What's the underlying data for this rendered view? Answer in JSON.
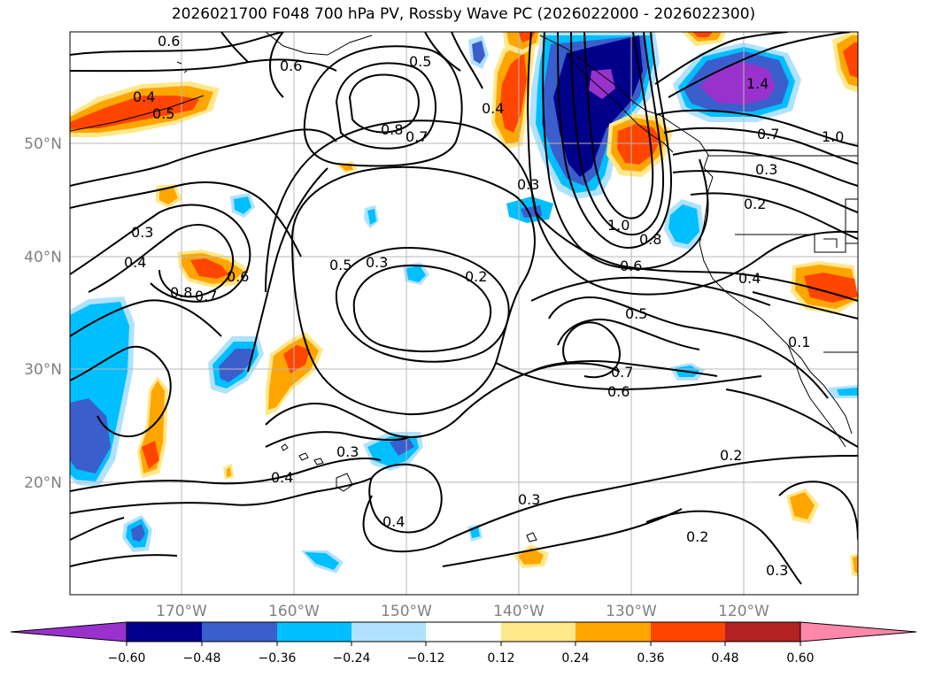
{
  "title": "2026021700 F048 700 hPa PV, Rossby Wave PC (2026022000 - 2026022300)",
  "lat_labels": [
    "50°N",
    "40°N",
    "30°N",
    "20°N"
  ],
  "lon_labels": [
    "170°W",
    "160°W",
    "150°W",
    "140°W",
    "130°W",
    "120°W"
  ],
  "contour_labels": [
    "0.6",
    "0.6",
    "0.5",
    "0.4",
    "0.5",
    "0.8",
    "0.7",
    "0.4",
    "0.3",
    "0.3",
    "0.4",
    "0.8",
    "0.7",
    "0.6",
    "0.5",
    "0.3",
    "0.2",
    "1.0",
    "0.8",
    "0.6",
    "0.5",
    "0.7",
    "0.6",
    "0.3",
    "0.2",
    "0.4",
    "0.3",
    "0.4",
    "0.2",
    "0.3",
    "0.4",
    "0.2",
    "0.3",
    "0.7",
    "1.0",
    "1.4",
    "0.1"
  ],
  "colorbar": {
    "ticks": [
      "−0.60",
      "−0.48",
      "−0.36",
      "−0.24",
      "−0.12",
      "0.12",
      "0.24",
      "0.36",
      "0.48",
      "0.60"
    ],
    "colors": [
      "#9932cc",
      "#00008b",
      "#3a5fcd",
      "#00bfff",
      "#b0e2ff",
      "#ffffff",
      "#ffe88a",
      "#ffa500",
      "#ff4500",
      "#b22222",
      "#ff88aa"
    ]
  },
  "colors": {
    "purple": "#9932cc",
    "navy": "#00008b",
    "blue": "#3a5fcd",
    "deepskyblue": "#00bfff",
    "lightblue": "#b0e2ff",
    "lightyellow": "#ffe88a",
    "orange": "#ffa500",
    "red": "#ff4500",
    "darkred": "#b22222",
    "pink": "#ff88aa"
  }
}
